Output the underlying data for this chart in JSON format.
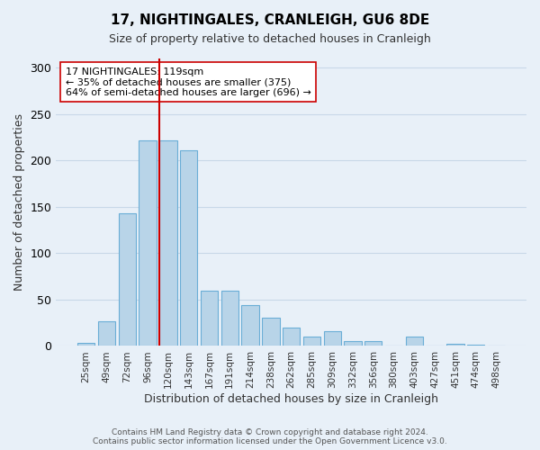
{
  "title": "17, NIGHTINGALES, CRANLEIGH, GU6 8DE",
  "subtitle": "Size of property relative to detached houses in Cranleigh",
  "xlabel": "Distribution of detached houses by size in Cranleigh",
  "ylabel": "Number of detached properties",
  "footer_lines": [
    "Contains HM Land Registry data © Crown copyright and database right 2024.",
    "Contains public sector information licensed under the Open Government Licence v3.0."
  ],
  "bar_labels": [
    "25sqm",
    "49sqm",
    "72sqm",
    "96sqm",
    "120sqm",
    "143sqm",
    "167sqm",
    "191sqm",
    "214sqm",
    "238sqm",
    "262sqm",
    "285sqm",
    "309sqm",
    "332sqm",
    "356sqm",
    "380sqm",
    "403sqm",
    "427sqm",
    "451sqm",
    "474sqm",
    "498sqm"
  ],
  "bar_values": [
    3,
    27,
    143,
    222,
    222,
    211,
    60,
    60,
    44,
    31,
    20,
    10,
    16,
    5,
    5,
    0,
    10,
    0,
    2,
    1,
    0
  ],
  "bar_color": "#b8d4e8",
  "bar_edge_color": "#6aaed6",
  "highlight_bar_index": 4,
  "highlight_line_color": "#cc0000",
  "annotation_text": "17 NIGHTINGALES: 119sqm\n← 35% of detached houses are smaller (375)\n64% of semi-detached houses are larger (696) →",
  "annotation_box_color": "#ffffff",
  "annotation_box_edge": "#cc0000",
  "ylim": [
    0,
    310
  ],
  "yticks": [
    0,
    50,
    100,
    150,
    200,
    250,
    300
  ],
  "grid_color": "#c8d8e8",
  "background_color": "#e8f0f8"
}
